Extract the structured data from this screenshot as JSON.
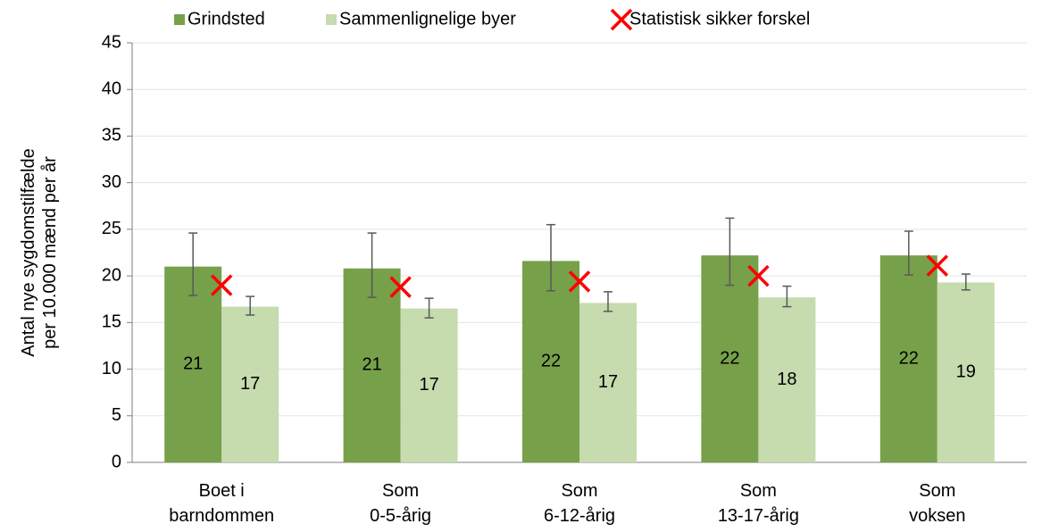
{
  "chart_data": {
    "type": "bar",
    "y_label": "Antal nye sygdomstilfælde\nper 10.000 mænd per år",
    "categories": [
      "Boet i\nbarndommen",
      "Som\n0-5-årig",
      "Som\n6-12-årig",
      "Som\n13-17-årig",
      "Som\nvoksen"
    ],
    "series": [
      {
        "name": "Grindsted",
        "color": "#77a04a",
        "values": [
          21.0,
          20.8,
          21.6,
          22.2,
          22.2
        ],
        "value_labels": [
          "21",
          "21",
          "22",
          "22",
          "22"
        ],
        "error_low": [
          17.9,
          17.7,
          18.4,
          19.0,
          20.1
        ],
        "error_high": [
          24.6,
          24.6,
          25.5,
          26.2,
          24.8
        ]
      },
      {
        "name": "Sammenlignelige byer",
        "color": "#c6dbae",
        "values": [
          16.7,
          16.5,
          17.1,
          17.7,
          19.3
        ],
        "value_labels": [
          "17",
          "17",
          "17",
          "18",
          "19"
        ],
        "error_low": [
          15.8,
          15.5,
          16.2,
          16.7,
          18.5
        ],
        "error_high": [
          17.8,
          17.6,
          18.3,
          18.9,
          20.2
        ]
      },
      {
        "name": "Statistisk sikker forskel",
        "color": "#ff0000",
        "marker": "x",
        "values": [
          19.0,
          18.8,
          19.4,
          20.0,
          21.1
        ]
      }
    ],
    "ylim": [
      0,
      45
    ],
    "yticks": [
      0,
      5,
      10,
      15,
      20,
      25,
      30,
      35,
      40,
      45
    ],
    "grid": true
  }
}
